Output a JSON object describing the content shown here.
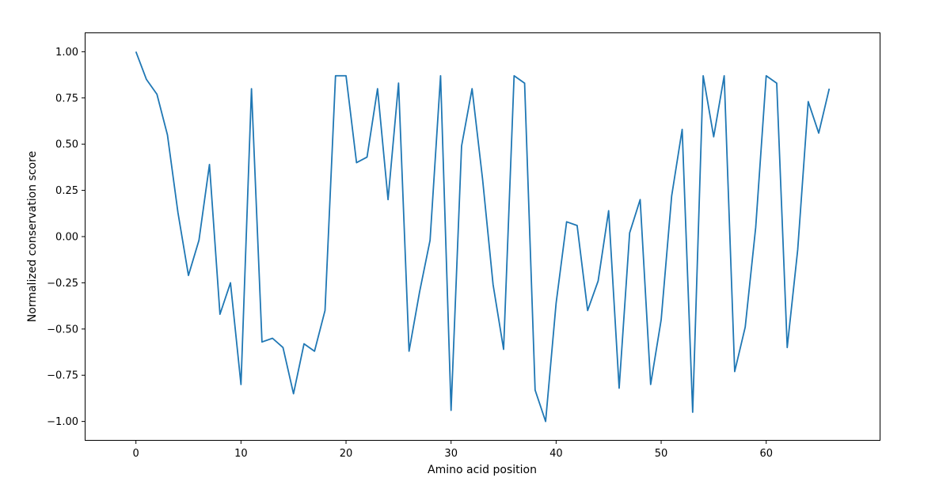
{
  "chart_data": {
    "type": "line",
    "title": "",
    "xlabel": "Amino acid position",
    "ylabel": "Normalized conservation score",
    "xlim": [
      -4.8,
      70.8
    ],
    "ylim": [
      -1.1,
      1.1
    ],
    "x_ticks": [
      0,
      10,
      20,
      30,
      40,
      50,
      60
    ],
    "y_ticks": [
      -1.0,
      -0.75,
      -0.5,
      -0.25,
      0.0,
      0.25,
      0.5,
      0.75,
      1.0
    ],
    "x_tick_labels": [
      "0",
      "10",
      "20",
      "30",
      "40",
      "50",
      "60"
    ],
    "y_tick_labels": [
      "−1.00",
      "−0.75",
      "−0.50",
      "−0.25",
      "0.00",
      "0.25",
      "0.50",
      "0.75",
      "1.00"
    ],
    "grid": false,
    "color": "#1f77b4",
    "series": [
      {
        "x": [
          0,
          1,
          2,
          3,
          4,
          5,
          6,
          7,
          8,
          9,
          10,
          11,
          12,
          13,
          14,
          15,
          16,
          17,
          18,
          19,
          20,
          21,
          22,
          23,
          24,
          25,
          26,
          27,
          28,
          29,
          30,
          31,
          32,
          33,
          34,
          35,
          36,
          37,
          38,
          39,
          40,
          41,
          42,
          43,
          44,
          45,
          46,
          47,
          48,
          49,
          50,
          51,
          52,
          53,
          54,
          55,
          56,
          57,
          58,
          59,
          60,
          61,
          62,
          63,
          64,
          65,
          66
        ],
        "values": [
          1.0,
          0.85,
          0.77,
          0.55,
          0.13,
          -0.21,
          -0.02,
          0.39,
          -0.42,
          -0.25,
          -0.8,
          0.8,
          -0.57,
          -0.55,
          -0.6,
          -0.85,
          -0.58,
          -0.62,
          -0.4,
          0.87,
          0.87,
          0.4,
          0.43,
          0.8,
          0.2,
          0.83,
          -0.62,
          -0.3,
          -0.02,
          0.87,
          -0.94,
          0.49,
          0.8,
          0.31,
          -0.26,
          -0.61,
          0.87,
          0.83,
          -0.83,
          -1.0,
          -0.36,
          0.08,
          0.06,
          -0.4,
          -0.24,
          0.14,
          -0.82,
          0.02,
          0.2,
          -0.8,
          -0.45,
          0.22,
          0.58,
          -0.95,
          0.87,
          0.54,
          0.87,
          -0.73,
          -0.49,
          0.05,
          0.87,
          0.83,
          -0.6,
          -0.07,
          0.73,
          0.56,
          0.8
        ]
      }
    ]
  }
}
